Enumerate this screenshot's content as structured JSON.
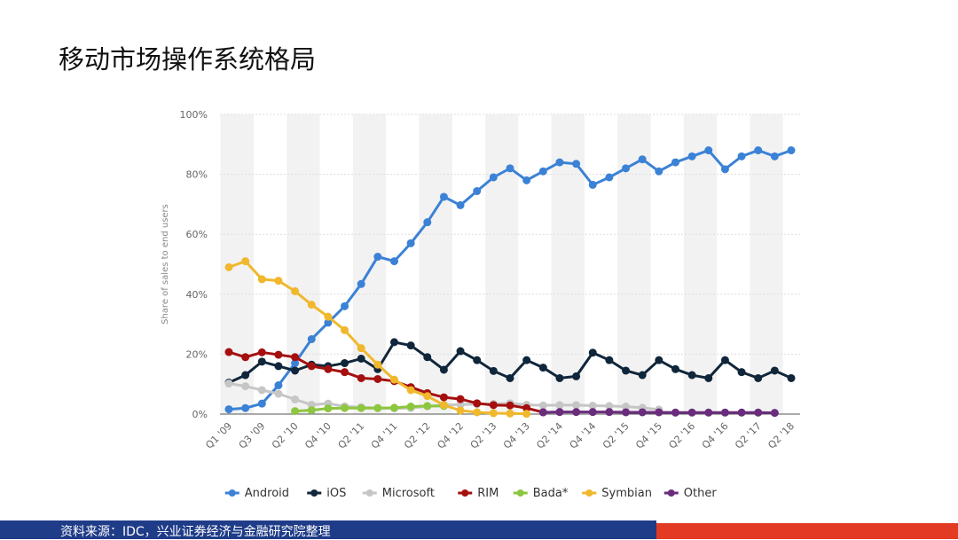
{
  "header": {
    "title": "移动市场操作系统格局"
  },
  "chart_data": {
    "type": "line",
    "y_label": "Share of sales to end users",
    "categories": [
      "Q1 '09",
      null,
      "Q3 '09",
      null,
      "Q2 '10",
      null,
      "Q4 '10",
      null,
      "Q2 '11",
      null,
      "Q4 '11",
      null,
      "Q2 '12",
      null,
      "Q4 '12",
      null,
      "Q2 '13",
      null,
      "Q4 '13",
      null,
      "Q2 '14",
      null,
      "Q4 '14",
      null,
      "Q2 '15",
      null,
      "Q4 '15",
      null,
      "Q2 '16",
      null,
      "Q4 '16",
      null,
      "Q2 '17",
      null,
      "Q2 '18"
    ],
    "ylim": [
      0,
      100
    ],
    "yticks": [
      {
        "value": 0,
        "label": "0%"
      },
      {
        "value": 20,
        "label": "20%"
      },
      {
        "value": 40,
        "label": "40%"
      },
      {
        "value": 60,
        "label": "60%"
      },
      {
        "value": 80,
        "label": "80%"
      },
      {
        "value": 100,
        "label": "100%"
      }
    ],
    "grid": true,
    "legend": "bottom",
    "series": [
      {
        "name": "Android",
        "color": "#3b82d6",
        "values": [
          1.6,
          2.0,
          3.5,
          9.6,
          17,
          25,
          30.5,
          36,
          43.4,
          52.5,
          51,
          57,
          64,
          72.5,
          69.7,
          74.4,
          79,
          82,
          78,
          81,
          84,
          83.5,
          76.5,
          79,
          82,
          85,
          81,
          84,
          86,
          88,
          81.7,
          86,
          88,
          86,
          88
        ]
      },
      {
        "name": "iOS",
        "color": "#10263a",
        "values": [
          10.5,
          13,
          17.5,
          16,
          14.5,
          16.5,
          16,
          17,
          18.5,
          15,
          24,
          22.9,
          19,
          14.8,
          21,
          18,
          14.4,
          12,
          18,
          15.5,
          12,
          12.6,
          20.5,
          18,
          14.5,
          13,
          18,
          15,
          13,
          12,
          18,
          14,
          12,
          14.5,
          12
        ]
      },
      {
        "name": "Microsoft",
        "color": "#c6c6c6",
        "values": [
          10.2,
          9.3,
          8,
          6.8,
          4.9,
          3.1,
          3.5,
          2.6,
          2.3,
          2,
          1.9,
          2,
          2.6,
          3,
          3.2,
          3.3,
          3.4,
          3.6,
          3.1,
          2.9,
          3,
          3,
          2.8,
          2.7,
          2.5,
          2.1,
          1.5,
          null,
          null,
          null,
          null,
          null,
          null,
          null,
          null
        ]
      },
      {
        "name": "RIM",
        "color": "#a50f0f",
        "values": [
          20.7,
          19,
          20.6,
          19.8,
          19,
          16,
          15,
          14,
          12,
          11.7,
          11,
          9,
          7,
          5.6,
          5,
          3.6,
          3,
          2.9,
          2,
          0.6,
          null,
          null,
          null,
          null,
          null,
          null,
          null,
          null,
          null,
          null,
          null,
          null,
          null,
          null,
          null
        ]
      },
      {
        "name": "Bada*",
        "color": "#8dc63f",
        "values": [
          null,
          null,
          null,
          null,
          1,
          1.3,
          1.9,
          2,
          2,
          2,
          2.1,
          2.5,
          2.7,
          2.7,
          null,
          null,
          null,
          null,
          null,
          null,
          null,
          null,
          null,
          null,
          null,
          null,
          null,
          null,
          null,
          null,
          null,
          null,
          null,
          null,
          null
        ]
      },
      {
        "name": "Symbian",
        "color": "#f0b82d",
        "values": [
          49,
          51,
          45,
          44.5,
          41,
          36.5,
          32.5,
          28,
          22,
          16.5,
          11.5,
          8,
          6,
          3,
          1.2,
          0.6,
          0.3,
          0.2,
          0.1,
          null,
          null,
          null,
          null,
          null,
          null,
          null,
          null,
          null,
          null,
          null,
          null,
          null,
          null,
          null,
          null
        ]
      },
      {
        "name": "Other",
        "color": "#6a2c7c",
        "values": [
          null,
          null,
          null,
          null,
          null,
          null,
          null,
          null,
          null,
          null,
          null,
          null,
          null,
          null,
          null,
          null,
          null,
          null,
          null,
          0.6,
          0.7,
          0.7,
          0.7,
          0.7,
          0.6,
          0.6,
          0.6,
          0.5,
          0.5,
          0.5,
          0.5,
          0.5,
          0.5,
          0.4,
          null
        ]
      }
    ]
  },
  "footer": {
    "source": "资料来源：IDC，兴业证券经济与金融研究院整理"
  }
}
